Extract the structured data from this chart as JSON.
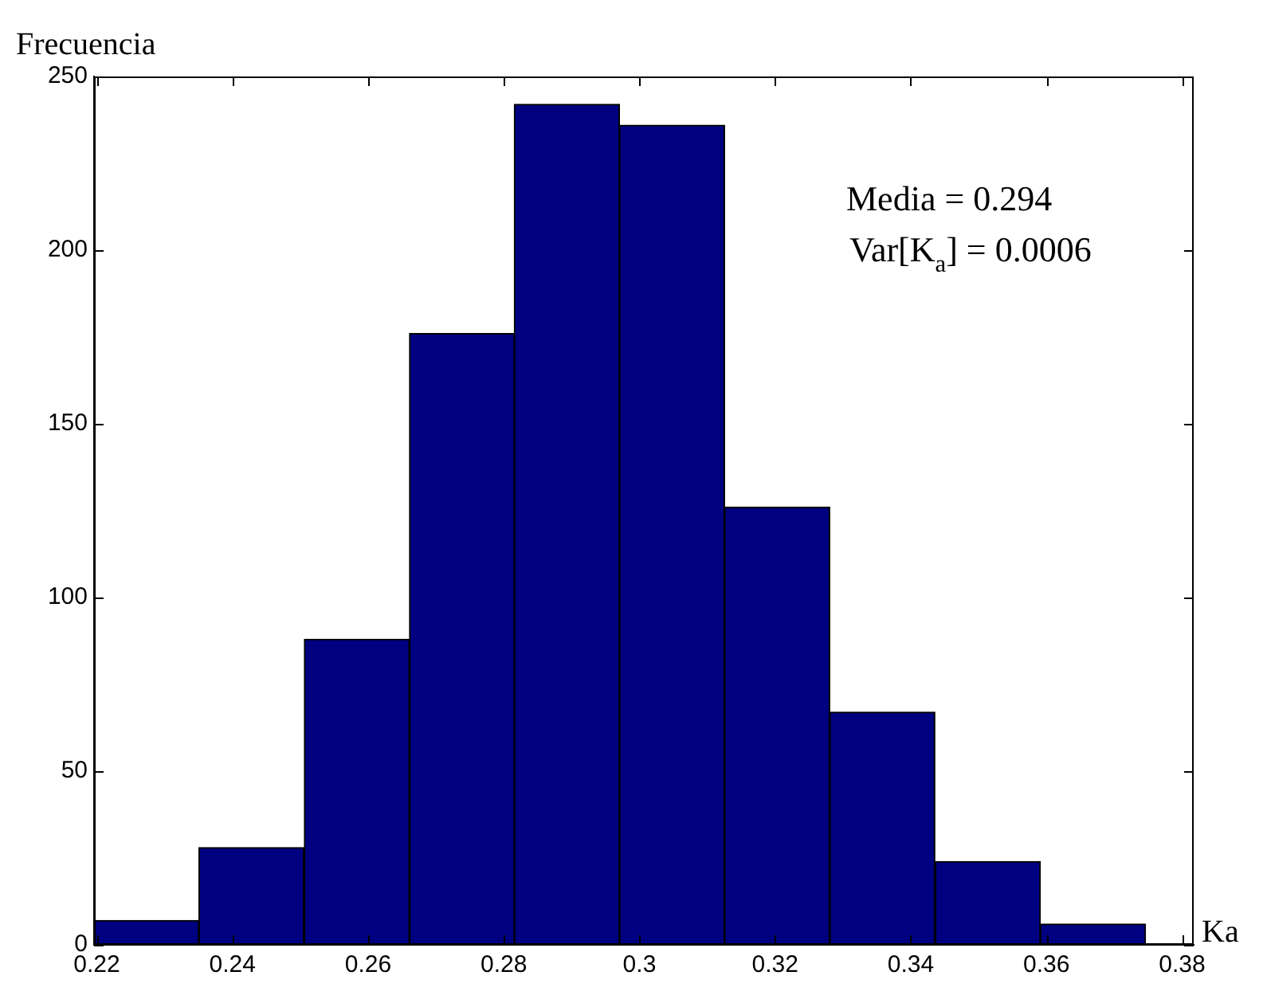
{
  "chart_data": {
    "type": "histogram",
    "xlabel": "Ka",
    "ylabel": "Frecuencia",
    "bins": [
      0.2196,
      0.235,
      0.2506,
      0.2661,
      0.2816,
      0.297,
      0.3126,
      0.328,
      0.3436,
      0.3591,
      0.3746
    ],
    "values": [
      7,
      28,
      88,
      176,
      242,
      236,
      126,
      67,
      24,
      6
    ],
    "color": "#000080",
    "xlim": [
      0.2196,
      0.3817
    ],
    "xticks": [
      0.22,
      0.24,
      0.26,
      0.28,
      0.3,
      0.32,
      0.34,
      0.36,
      0.38
    ],
    "ylim": [
      0,
      250
    ],
    "yticks": [
      0,
      50,
      100,
      150,
      200,
      250
    ],
    "grid": false,
    "annotations": [
      "Media = 0.294",
      "Var[K$_{a}$] = 0.0006"
    ]
  }
}
